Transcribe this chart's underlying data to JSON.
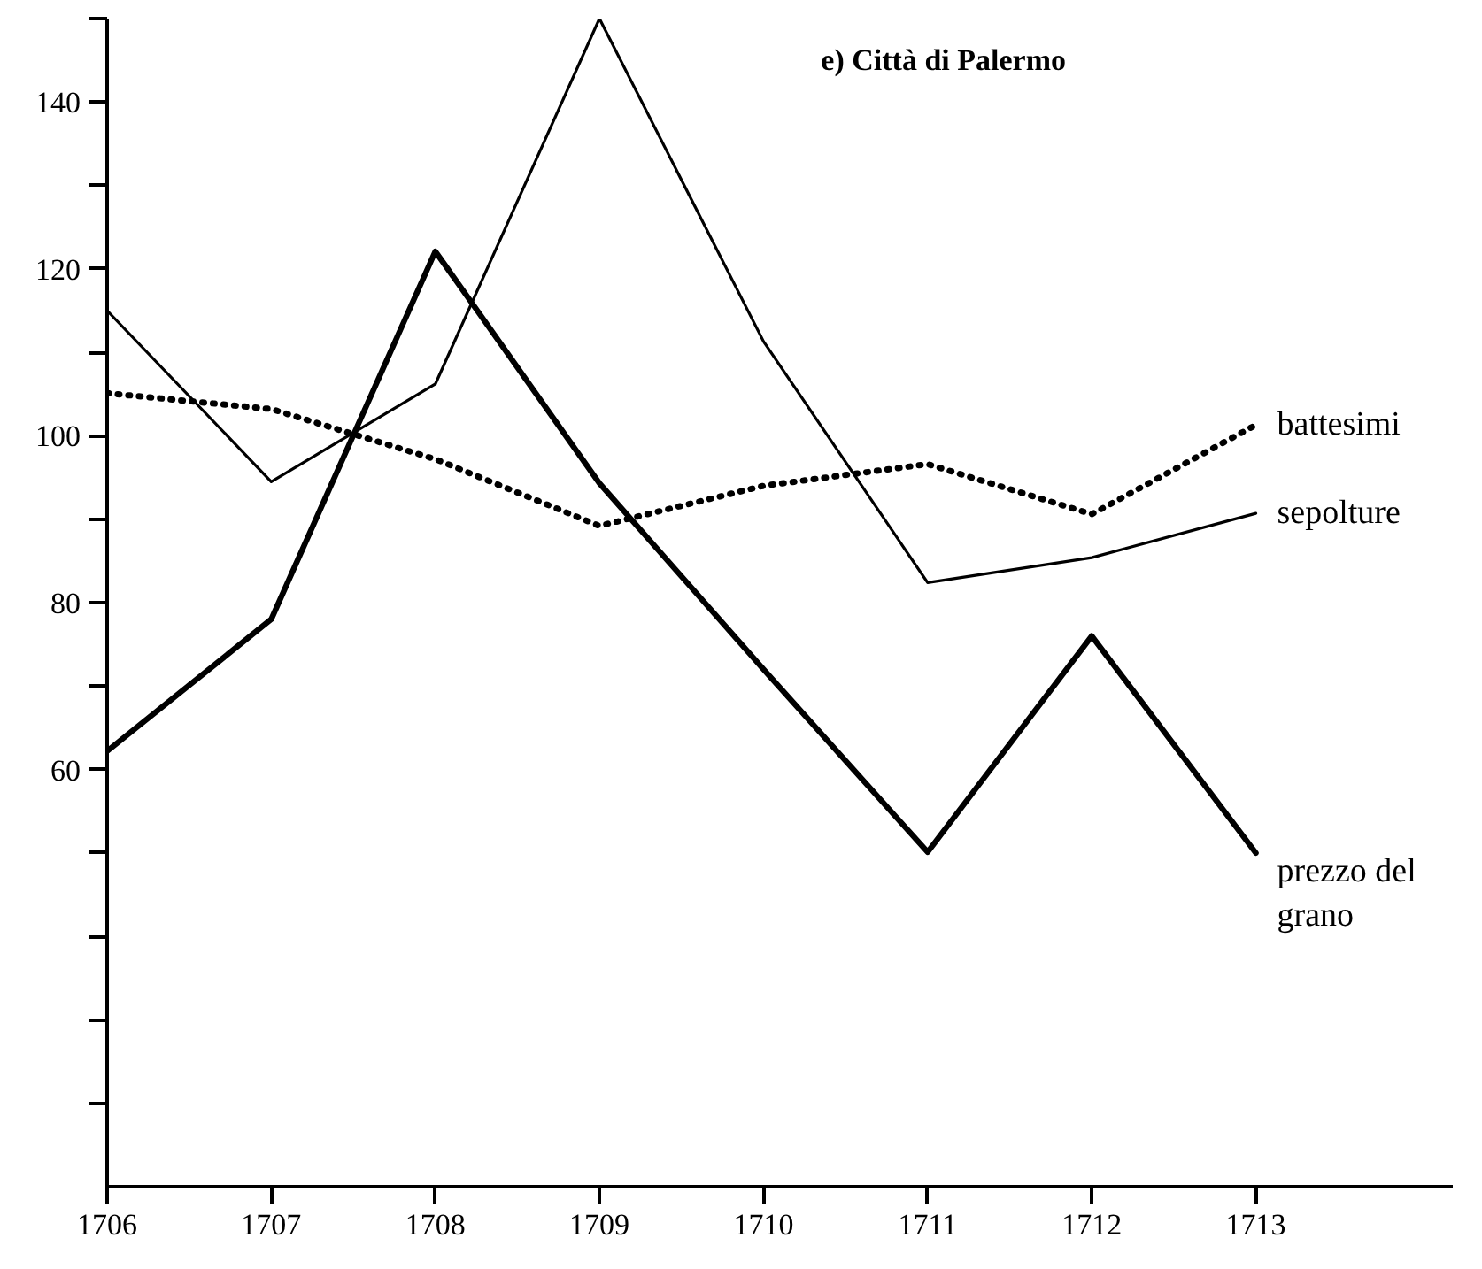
{
  "chart_data": {
    "type": "line",
    "title": "e) Città di Palermo",
    "x": [
      1706,
      1707,
      1708,
      1709,
      1710,
      1711,
      1712,
      1713
    ],
    "series": [
      {
        "name": "battesimi",
        "color": "#000000",
        "line_style": "dotted",
        "values": [
          105.1,
          103.2,
          97.2,
          89.2,
          94,
          96.6,
          90.6,
          101.3
        ]
      },
      {
        "name": "sepolture",
        "color": "#000000",
        "line_style": "solid",
        "values": [
          115,
          94.5,
          106.2,
          150,
          111.3,
          82.4,
          85.4,
          90.7
        ]
      },
      {
        "name": "prezzo del grano",
        "color": "#000000",
        "line_style": "solid",
        "values": [
          62.2,
          78,
          122.1,
          94.3,
          72,
          50.1,
          76,
          50
        ]
      }
    ],
    "xlim": [
      1706,
      1714.2
    ],
    "ylim": [
      10,
      150
    ],
    "xticks": [
      1706,
      1707,
      1708,
      1709,
      1710,
      1711,
      1712,
      1713
    ],
    "yticks": [
      {
        "value": 20,
        "label": null
      },
      {
        "value": 30,
        "label": null
      },
      {
        "value": 40,
        "label": null
      },
      {
        "value": 50,
        "label": null
      },
      60,
      {
        "value": 70,
        "label": null
      },
      80,
      {
        "value": 90,
        "label": null
      },
      100,
      {
        "value": 110,
        "label": null
      },
      120,
      {
        "value": 130,
        "label": null
      },
      140,
      {
        "value": 150,
        "label": null
      }
    ],
    "grid": false,
    "legend": false,
    "marker": "none"
  }
}
